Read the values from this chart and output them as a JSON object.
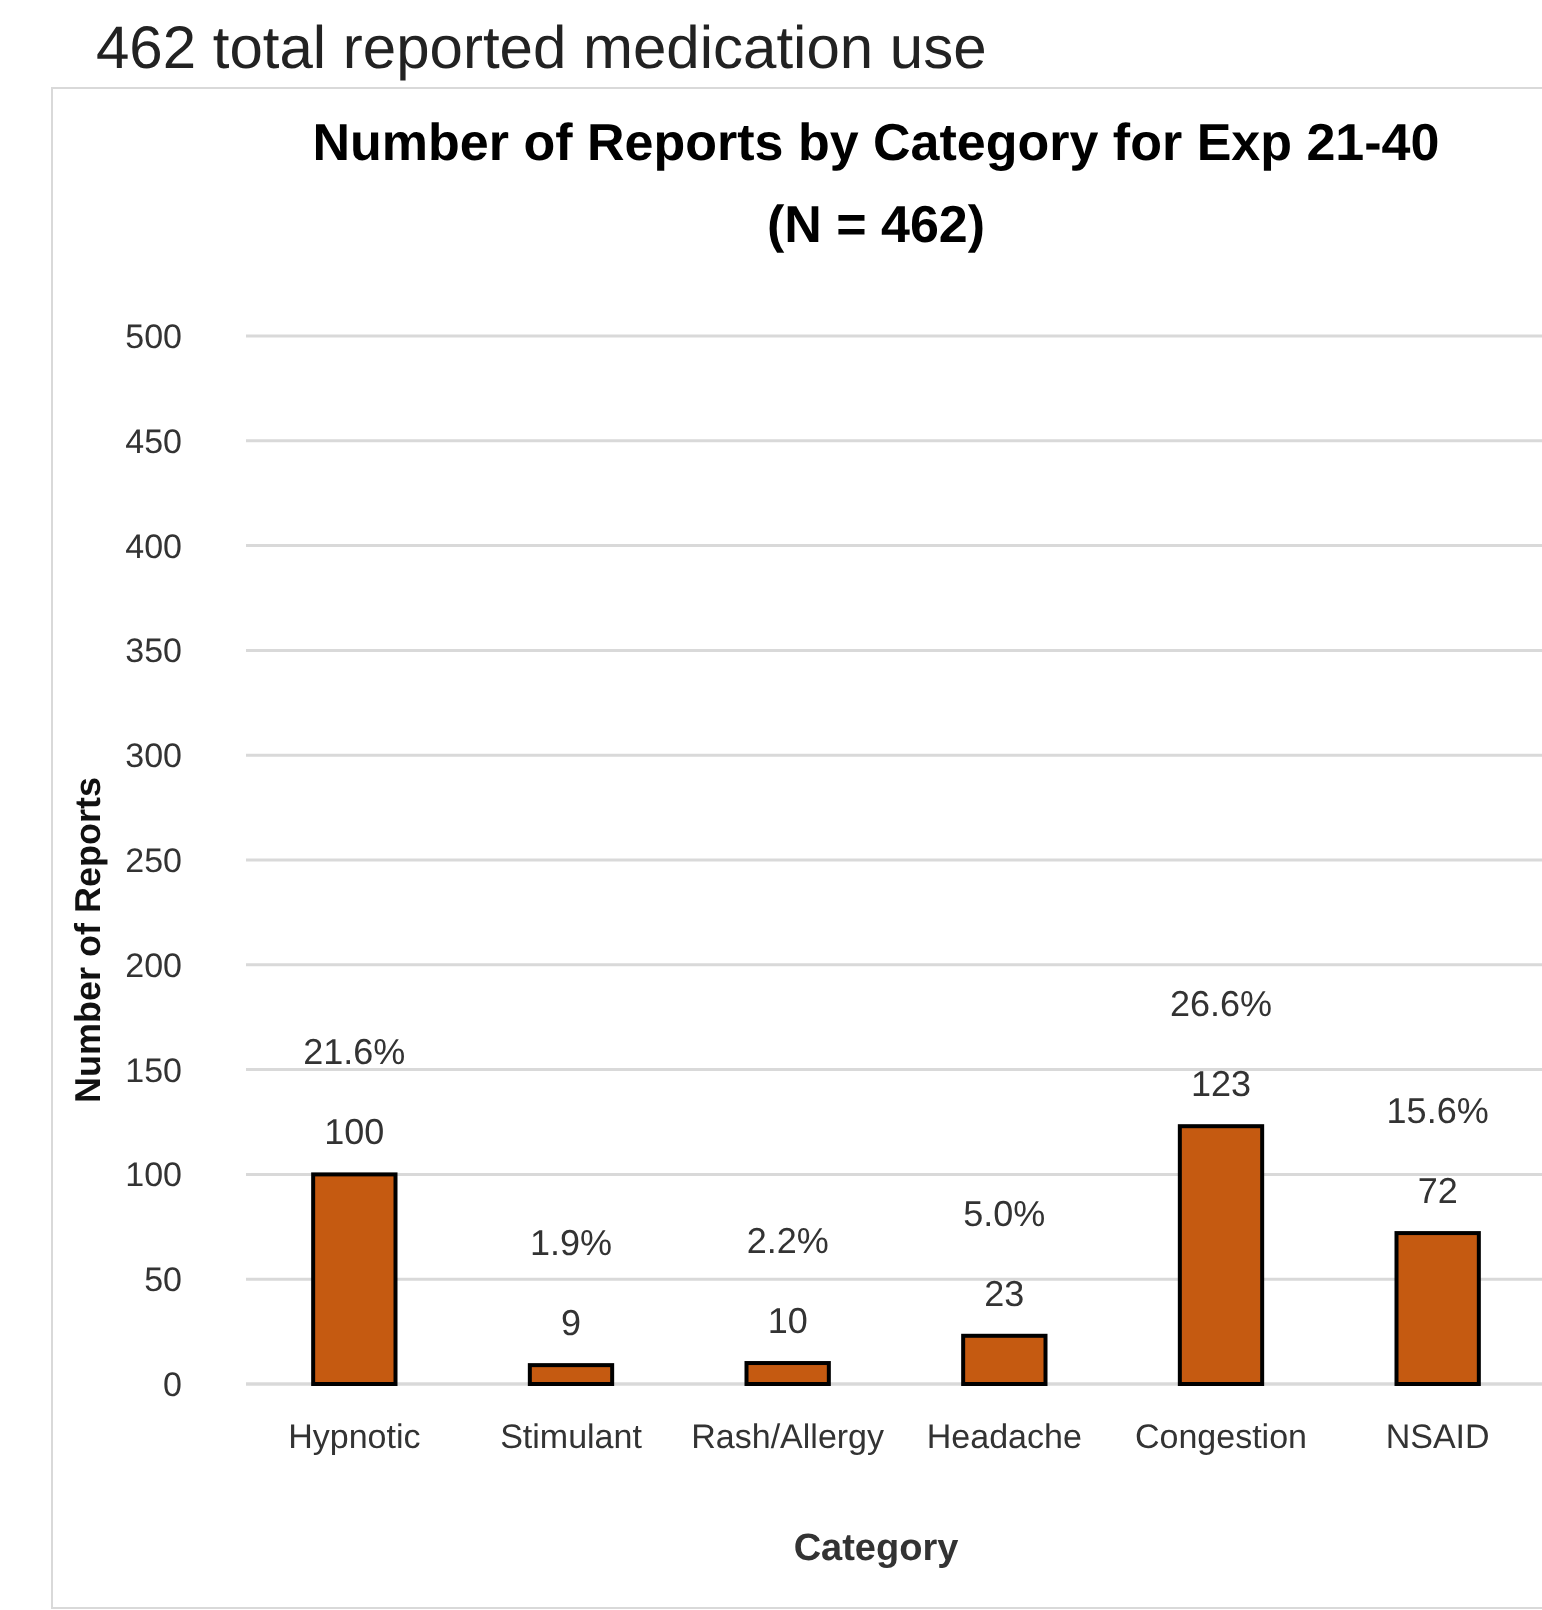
{
  "chart_data": {
    "type": "bar",
    "title": "Number of Reports by Category for Exp 21-40",
    "subtitle": "(N = 462)",
    "xlabel": "Category",
    "ylabel": "Number of Reports",
    "annotations": [
      "462 total reported medication use"
    ],
    "categories": [
      "Hypnotic",
      "Stimulant",
      "Rash/Allergy",
      "Headache",
      "Congestion",
      "NSAID"
    ],
    "values": [
      100,
      9,
      10,
      23,
      123,
      72
    ],
    "color": "#c55a11",
    "value_labels": [
      "21.6%\n100",
      "1.9%\n9",
      "2.2%\n10",
      "5.0%\n23",
      "26.6%\n123",
      "15.6%\n72"
    ],
    "ylim": [
      0,
      500
    ],
    "yticks": [
      0,
      50,
      100,
      150,
      200,
      250,
      300,
      350,
      400,
      450,
      500
    ],
    "grid": "y"
  }
}
